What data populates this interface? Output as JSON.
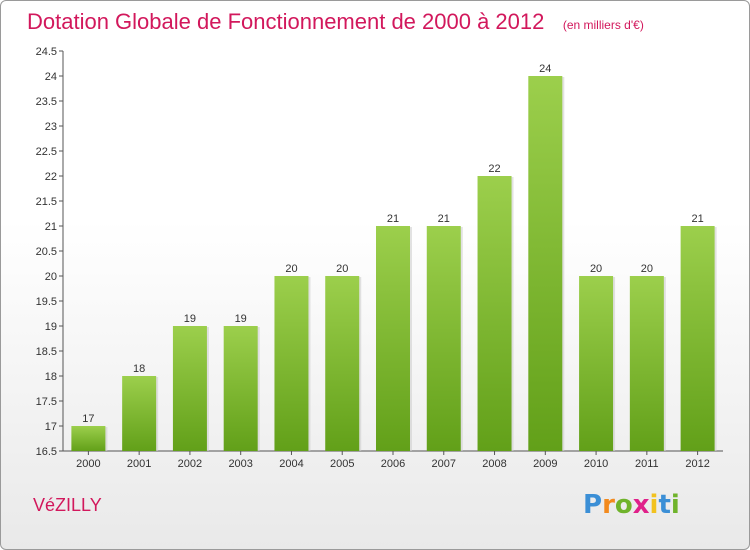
{
  "header": {
    "title": "Dotation Globale de Fonctionnement de 2000 à 2012",
    "unit": "(en milliers d'€)"
  },
  "footer": {
    "commune": "VéZILLY",
    "brand": "Proxiti",
    "brand_letters": [
      "P",
      "r",
      "o",
      "x",
      "i",
      "t",
      "i"
    ],
    "brand_colors": [
      "#3b8fd6",
      "#f28a1e",
      "#6fb32b",
      "#e0218a",
      "#f2c21e",
      "#3b8fd6",
      "#6fb32b"
    ]
  },
  "chart_data": {
    "type": "bar",
    "title": "Dotation Globale de Fonctionnement de 2000 à 2012",
    "subtitle": "(en milliers d'€)",
    "xlabel": "",
    "ylabel": "",
    "categories": [
      "2000",
      "2001",
      "2002",
      "2003",
      "2004",
      "2005",
      "2006",
      "2007",
      "2008",
      "2009",
      "2010",
      "2011",
      "2012"
    ],
    "values": [
      17,
      18,
      19,
      19,
      20,
      20,
      21,
      21,
      22,
      24,
      20,
      20,
      21
    ],
    "labels": [
      "17",
      "18",
      "19",
      "19",
      "20",
      "20",
      "21",
      "21",
      "22",
      "24",
      "20",
      "20",
      "21"
    ],
    "ylim": [
      16.5,
      24.5
    ],
    "yticks": [
      "16.5",
      "17",
      "17.5",
      "18",
      "18.5",
      "19",
      "19.5",
      "20",
      "20.5",
      "21",
      "21.5",
      "22",
      "22.5",
      "23",
      "23.5",
      "24",
      "24.5"
    ],
    "grid": false,
    "bar_color_top": "#9ccf4c",
    "bar_color_bottom": "#62a019",
    "legend": "none"
  }
}
